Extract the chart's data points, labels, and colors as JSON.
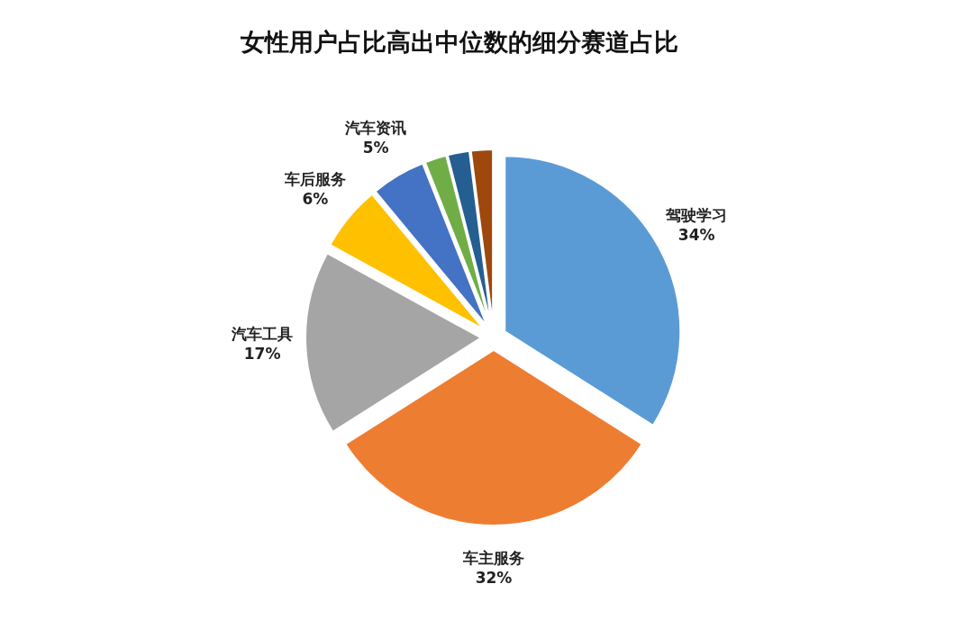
{
  "chart_data": {
    "type": "pie",
    "title": "女性用户占比高出中位数的细分赛道占比",
    "categories": [
      "驾驶学习",
      "车主服务",
      "汽车工具",
      "车后服务",
      "汽车资讯",
      null,
      null,
      null
    ],
    "values": [
      34,
      32,
      17,
      6,
      5,
      2,
      2,
      2
    ],
    "colors": [
      "#5b9bd5",
      "#ed7d31",
      "#a5a5a5",
      "#ffc000",
      "#4472c4",
      "#70ad47",
      "#255e91",
      "#9e480e"
    ],
    "value_labels": [
      "34%",
      "32%",
      "17%",
      "6%",
      "5%",
      null,
      null,
      null
    ]
  }
}
